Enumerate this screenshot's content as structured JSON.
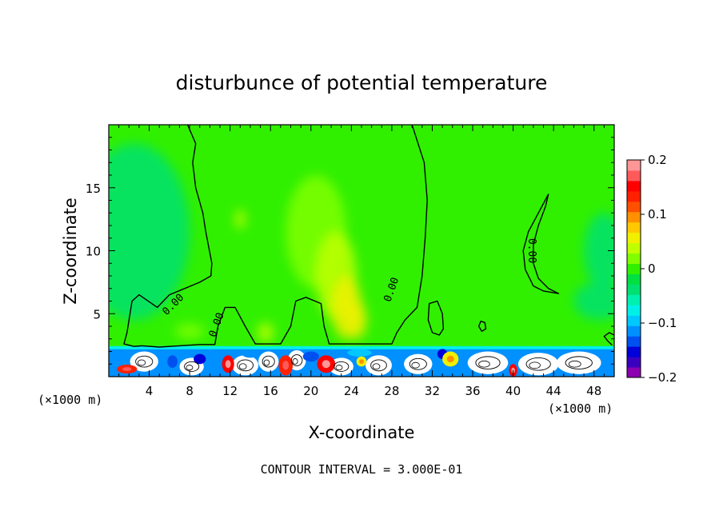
{
  "chart_data": {
    "type": "heatmap",
    "title": "disturbunce of potential temperature",
    "xlabel": "X-coordinate",
    "ylabel": "Z-coordinate",
    "x_unit_left": "(×1000 m)",
    "x_unit_right": "(×1000 m)",
    "xlim": [
      0,
      50
    ],
    "ylim": [
      0,
      20
    ],
    "x_ticks": [
      4,
      8,
      12,
      16,
      20,
      24,
      28,
      32,
      36,
      40,
      44,
      48
    ],
    "y_ticks": [
      5,
      10,
      15
    ],
    "colorbar": {
      "min": -0.2,
      "max": 0.2,
      "tick_values": [
        0.2,
        0.1,
        0,
        -0.1,
        -0.2
      ],
      "tick_labels": [
        "0.2",
        "0.1",
        "0",
        "−0.1",
        "−0.2"
      ],
      "colors": [
        "#8b00b0",
        "#3a00c0",
        "#0000d8",
        "#0050f0",
        "#0090ff",
        "#00c8ff",
        "#00f0e8",
        "#00f0b0",
        "#00e070",
        "#00e040",
        "#30f000",
        "#80ff00",
        "#c0ff00",
        "#f0f000",
        "#ffc800",
        "#ff9000",
        "#ff5000",
        "#ff2000",
        "#ff0000",
        "#ff5a5a",
        "#ff9696"
      ]
    },
    "contour_label": "0.00",
    "contour_interval_text": "CONTOUR INTERVAL = 3.000E-01",
    "contour_interval": 0.3,
    "background_value": -0.005,
    "patches": [
      {
        "x": 2.5,
        "z": 11.5,
        "rx": 5.5,
        "rz": 7.0,
        "v": -0.04
      },
      {
        "x": 49.0,
        "z": 10.0,
        "rx": 2.0,
        "rz": 3.0,
        "v": -0.03
      },
      {
        "x": 48.5,
        "z": 6.0,
        "rx": 2.5,
        "rz": 1.5,
        "v": -0.03
      },
      {
        "x": 20.5,
        "z": 11.5,
        "rx": 3.0,
        "rz": 4.5,
        "v": 0.02
      },
      {
        "x": 22.5,
        "z": 8.0,
        "rx": 2.0,
        "rz": 3.5,
        "v": 0.03
      },
      {
        "x": 23.5,
        "z": 5.5,
        "rx": 1.5,
        "rz": 2.5,
        "v": 0.05
      },
      {
        "x": 24.5,
        "z": 4.5,
        "rx": 1.0,
        "rz": 1.5,
        "v": 0.06
      },
      {
        "x": 13.0,
        "z": 12.5,
        "rx": 0.5,
        "rz": 0.8,
        "v": 0.03
      },
      {
        "x": 15.5,
        "z": 3.5,
        "rx": 0.8,
        "rz": 0.8,
        "v": 0.03
      },
      {
        "x": 8.0,
        "z": 3.6,
        "rx": 1.5,
        "rz": 0.6,
        "v": 0.02
      }
    ],
    "contours": [
      {
        "name": "zero-contour-main",
        "label": "0.00",
        "points": [
          [
            7.8,
            20.0
          ],
          [
            8.6,
            18.5
          ],
          [
            8.3,
            17.0
          ],
          [
            8.6,
            15.0
          ],
          [
            9.3,
            13.0
          ],
          [
            9.6,
            11.5
          ],
          [
            10.2,
            9.0
          ],
          [
            10.1,
            8.0
          ],
          [
            9.0,
            7.5
          ],
          [
            7.5,
            7.0
          ],
          [
            6.0,
            6.5
          ],
          [
            4.8,
            5.5
          ],
          [
            3.0,
            6.5
          ],
          [
            2.3,
            6.0
          ],
          [
            1.8,
            3.5
          ],
          [
            1.5,
            2.6
          ],
          [
            2.5,
            2.4
          ],
          [
            3.3,
            2.45
          ],
          [
            5.0,
            2.35
          ],
          [
            7.0,
            2.45
          ],
          [
            9.0,
            2.55
          ],
          [
            10.5,
            2.55
          ],
          [
            10.8,
            4.0
          ],
          [
            11.5,
            5.5
          ],
          [
            12.5,
            5.5
          ],
          [
            13.5,
            4.0
          ],
          [
            14.5,
            2.6
          ],
          [
            16.0,
            2.6
          ],
          [
            17.0,
            2.6
          ],
          [
            18.0,
            4.0
          ],
          [
            18.5,
            6.0
          ],
          [
            19.5,
            6.3
          ],
          [
            21.0,
            5.8
          ],
          [
            21.3,
            4.0
          ],
          [
            21.8,
            2.6
          ],
          [
            23.5,
            2.6
          ],
          [
            26.0,
            2.6
          ],
          [
            28.0,
            2.6
          ],
          [
            28.5,
            3.5
          ],
          [
            29.3,
            4.5
          ],
          [
            30.5,
            5.5
          ],
          [
            31.0,
            8.0
          ],
          [
            31.3,
            11.0
          ],
          [
            31.5,
            14.0
          ],
          [
            31.2,
            17.0
          ],
          [
            30.0,
            20.0
          ]
        ]
      },
      {
        "name": "zero-contour-crescent",
        "label": "0.00",
        "points": [
          [
            43.5,
            14.5
          ],
          [
            42.5,
            13.0
          ],
          [
            41.5,
            11.5
          ],
          [
            41.0,
            10.0
          ],
          [
            41.2,
            8.5
          ],
          [
            42.0,
            7.2
          ],
          [
            43.0,
            6.8
          ],
          [
            44.5,
            6.6
          ],
          [
            43.5,
            7.0
          ],
          [
            42.5,
            7.8
          ],
          [
            42.0,
            9.0
          ],
          [
            42.0,
            10.5
          ],
          [
            42.5,
            12.0
          ],
          [
            43.2,
            13.5
          ],
          [
            43.5,
            14.5
          ]
        ]
      },
      {
        "name": "zero-contour-small-loop",
        "points": [
          [
            32.0,
            3.5
          ],
          [
            31.6,
            4.5
          ],
          [
            31.7,
            5.8
          ],
          [
            32.5,
            6.0
          ],
          [
            33.0,
            5.0
          ],
          [
            33.1,
            3.8
          ],
          [
            32.7,
            3.3
          ],
          [
            32.0,
            3.5
          ]
        ]
      },
      {
        "name": "zero-contour-tiny-loop",
        "points": [
          [
            36.6,
            4.0
          ],
          [
            36.8,
            4.4
          ],
          [
            37.2,
            4.3
          ],
          [
            37.3,
            3.8
          ],
          [
            36.9,
            3.6
          ],
          [
            36.6,
            4.0
          ]
        ]
      },
      {
        "name": "zero-contour-right-edge",
        "points": [
          [
            49.8,
            2.5
          ],
          [
            49.4,
            2.8
          ],
          [
            49.0,
            3.2
          ],
          [
            49.5,
            3.5
          ],
          [
            50.0,
            3.3
          ]
        ]
      }
    ],
    "contour_labels": [
      {
        "text": "0.00",
        "x": 6.4,
        "z": 5.7,
        "angle": -45
      },
      {
        "text": "0.00",
        "x": 10.7,
        "z": 4.1,
        "angle": -70
      },
      {
        "text": "0.00",
        "x": 28.0,
        "z": 6.9,
        "angle": -70
      },
      {
        "text": "0.00",
        "x": 41.8,
        "z": 10.0,
        "angle": 90
      }
    ],
    "turbulent_band": {
      "z_min": 0,
      "z_max": 2.3,
      "warm_blobs": [
        {
          "x": 1.8,
          "z": 0.6,
          "rx": 1.0,
          "rz": 0.35,
          "v": 0.14
        },
        {
          "x": 11.8,
          "z": 1.0,
          "rx": 0.6,
          "rz": 0.7,
          "v": 0.16
        },
        {
          "x": 17.5,
          "z": 0.9,
          "rx": 0.7,
          "rz": 0.8,
          "v": 0.13
        },
        {
          "x": 21.5,
          "z": 1.0,
          "rx": 0.9,
          "rz": 0.7,
          "v": 0.15
        },
        {
          "x": 25.0,
          "z": 1.2,
          "rx": 0.5,
          "rz": 0.4,
          "v": 0.05
        },
        {
          "x": 33.8,
          "z": 1.4,
          "rx": 0.8,
          "rz": 0.6,
          "v": 0.06
        },
        {
          "x": 40.0,
          "z": 0.5,
          "rx": 0.4,
          "rz": 0.5,
          "v": 0.16
        }
      ],
      "cool_blobs": [
        {
          "x": 0.8,
          "z": 1.3,
          "rx": 0.8,
          "rz": 0.3,
          "v": -0.12
        },
        {
          "x": 6.3,
          "z": 1.2,
          "rx": 0.5,
          "rz": 0.5,
          "v": -0.13
        },
        {
          "x": 9.0,
          "z": 1.4,
          "rx": 0.6,
          "rz": 0.4,
          "v": -0.15
        },
        {
          "x": 14.0,
          "z": 1.8,
          "rx": 0.8,
          "rz": 0.3,
          "v": -0.11
        },
        {
          "x": 20.0,
          "z": 1.6,
          "rx": 0.8,
          "rz": 0.4,
          "v": -0.14
        },
        {
          "x": 24.8,
          "z": 1.9,
          "rx": 1.2,
          "rz": 0.3,
          "v": -0.1
        },
        {
          "x": 28.5,
          "z": 1.5,
          "rx": 0.6,
          "rz": 0.4,
          "v": -0.11
        },
        {
          "x": 33.0,
          "z": 1.8,
          "rx": 0.5,
          "rz": 0.4,
          "v": -0.15
        },
        {
          "x": 35.0,
          "z": 0.5,
          "rx": 0.6,
          "rz": 0.4,
          "v": -0.12
        }
      ],
      "white_cells": [
        {
          "x": 3.5,
          "z": 1.2,
          "rx": 1.4,
          "rz": 0.8
        },
        {
          "x": 8.2,
          "z": 0.8,
          "rx": 1.2,
          "rz": 0.7
        },
        {
          "x": 13.5,
          "z": 0.9,
          "rx": 1.3,
          "rz": 0.8
        },
        {
          "x": 15.8,
          "z": 1.2,
          "rx": 1.0,
          "rz": 0.8
        },
        {
          "x": 18.6,
          "z": 1.3,
          "rx": 0.9,
          "rz": 0.8
        },
        {
          "x": 23.0,
          "z": 0.8,
          "rx": 1.2,
          "rz": 0.7
        },
        {
          "x": 26.7,
          "z": 0.9,
          "rx": 1.3,
          "rz": 0.8
        },
        {
          "x": 30.6,
          "z": 1.0,
          "rx": 1.4,
          "rz": 0.8
        },
        {
          "x": 37.5,
          "z": 1.1,
          "rx": 2.0,
          "rz": 0.9
        },
        {
          "x": 42.5,
          "z": 1.0,
          "rx": 2.0,
          "rz": 0.9
        },
        {
          "x": 46.5,
          "z": 1.1,
          "rx": 2.2,
          "rz": 0.9
        }
      ]
    }
  }
}
